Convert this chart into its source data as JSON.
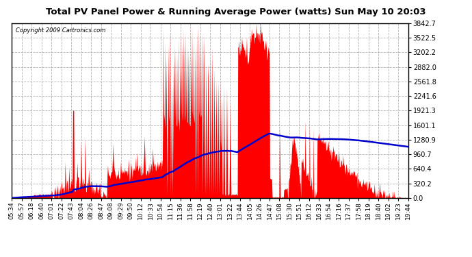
{
  "title": "Total PV Panel Power & Running Average Power (watts) Sun May 10 20:03",
  "copyright": "Copyright 2009 Cartronics.com",
  "background_color": "#ffffff",
  "plot_bg_color": "#ffffff",
  "grid_color": "#aaaaaa",
  "fill_color": "#ff0000",
  "line_color": "#0000cc",
  "y_max": 3842.7,
  "y_ticks": [
    0.0,
    320.2,
    640.4,
    960.7,
    1280.9,
    1601.1,
    1921.3,
    2241.6,
    2561.8,
    2882.0,
    3202.2,
    3522.5,
    3842.7
  ],
  "x_tick_labels": [
    "05:34",
    "05:57",
    "06:18",
    "06:40",
    "07:01",
    "07:22",
    "07:43",
    "08:04",
    "08:26",
    "08:47",
    "09:08",
    "09:29",
    "09:50",
    "10:12",
    "10:33",
    "10:54",
    "11:15",
    "11:36",
    "11:58",
    "12:19",
    "12:40",
    "13:01",
    "13:22",
    "13:44",
    "14:05",
    "14:26",
    "14:47",
    "15:08",
    "15:30",
    "15:51",
    "16:12",
    "16:33",
    "16:54",
    "17:16",
    "17:37",
    "17:58",
    "18:19",
    "18:40",
    "19:02",
    "19:23",
    "19:44"
  ],
  "num_points": 820
}
